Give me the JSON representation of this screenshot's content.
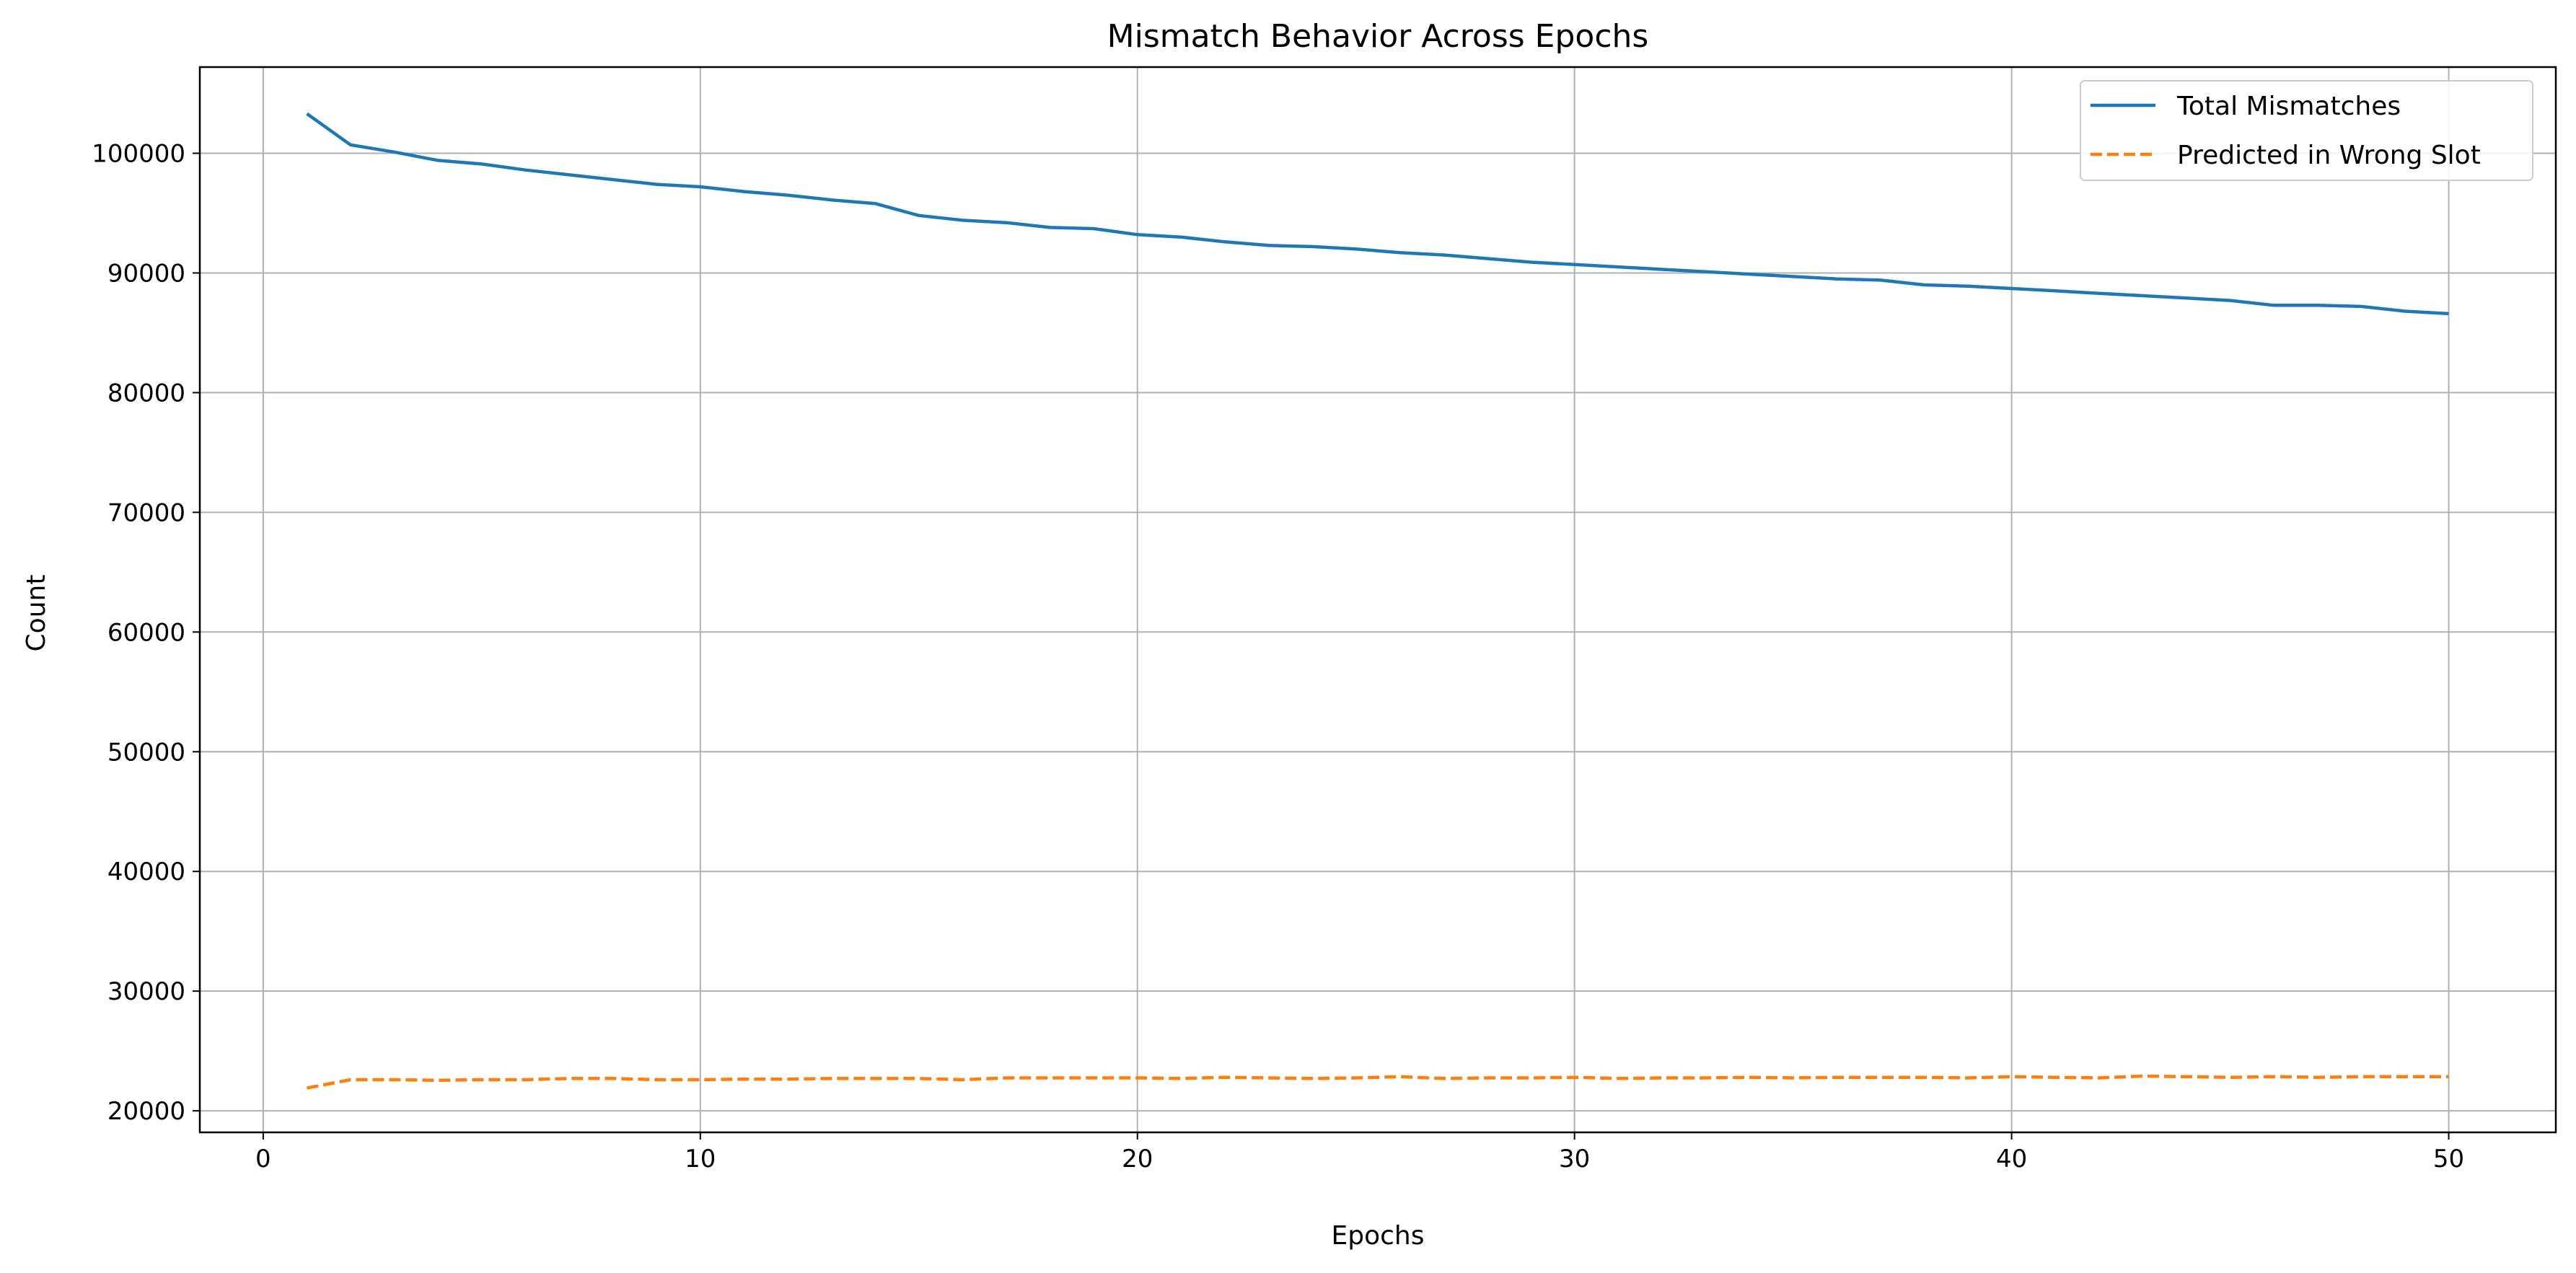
{
  "chart_data": {
    "type": "line",
    "title": "Mismatch Behavior Across Epochs",
    "xlabel": "Epochs",
    "ylabel": "Count",
    "xlim": [
      -1.45,
      52.45
    ],
    "ylim": [
      18200,
      107200
    ],
    "xticks": [
      0,
      10,
      20,
      30,
      40,
      50
    ],
    "yticks": [
      20000,
      30000,
      40000,
      50000,
      60000,
      70000,
      80000,
      90000,
      100000
    ],
    "grid": true,
    "legend_position": "top-right",
    "x": [
      1,
      2,
      3,
      4,
      5,
      6,
      7,
      8,
      9,
      10,
      11,
      12,
      13,
      14,
      15,
      16,
      17,
      18,
      19,
      20,
      21,
      22,
      23,
      24,
      25,
      26,
      27,
      28,
      29,
      30,
      31,
      32,
      33,
      34,
      35,
      36,
      37,
      38,
      39,
      40,
      41,
      42,
      43,
      44,
      45,
      46,
      47,
      48,
      49,
      50
    ],
    "series": [
      {
        "name": "Total Mismatches",
        "color": "#1f77b4",
        "style": "solid",
        "values": [
          103300,
          100700,
          100100,
          99400,
          99100,
          98600,
          98200,
          97800,
          97400,
          97200,
          96800,
          96500,
          96100,
          95800,
          94800,
          94400,
          94200,
          93800,
          93700,
          93200,
          93000,
          92600,
          92300,
          92200,
          92000,
          91700,
          91500,
          91200,
          90900,
          90700,
          90500,
          90300,
          90100,
          89900,
          89700,
          89500,
          89400,
          89000,
          88900,
          88700,
          88500,
          88300,
          88100,
          87900,
          87700,
          87300,
          87300,
          87200,
          86800,
          86600
        ]
      },
      {
        "name": "Predicted in Wrong Slot",
        "color": "#ff7f0e",
        "style": "dashed",
        "values": [
          21900,
          22600,
          22600,
          22550,
          22600,
          22600,
          22700,
          22700,
          22600,
          22600,
          22650,
          22650,
          22700,
          22700,
          22700,
          22600,
          22750,
          22750,
          22750,
          22750,
          22700,
          22800,
          22750,
          22700,
          22750,
          22850,
          22700,
          22750,
          22750,
          22800,
          22700,
          22750,
          22750,
          22800,
          22750,
          22800,
          22800,
          22800,
          22750,
          22850,
          22800,
          22750,
          22900,
          22850,
          22800,
          22850,
          22800,
          22850,
          22850,
          22850
        ]
      }
    ]
  }
}
